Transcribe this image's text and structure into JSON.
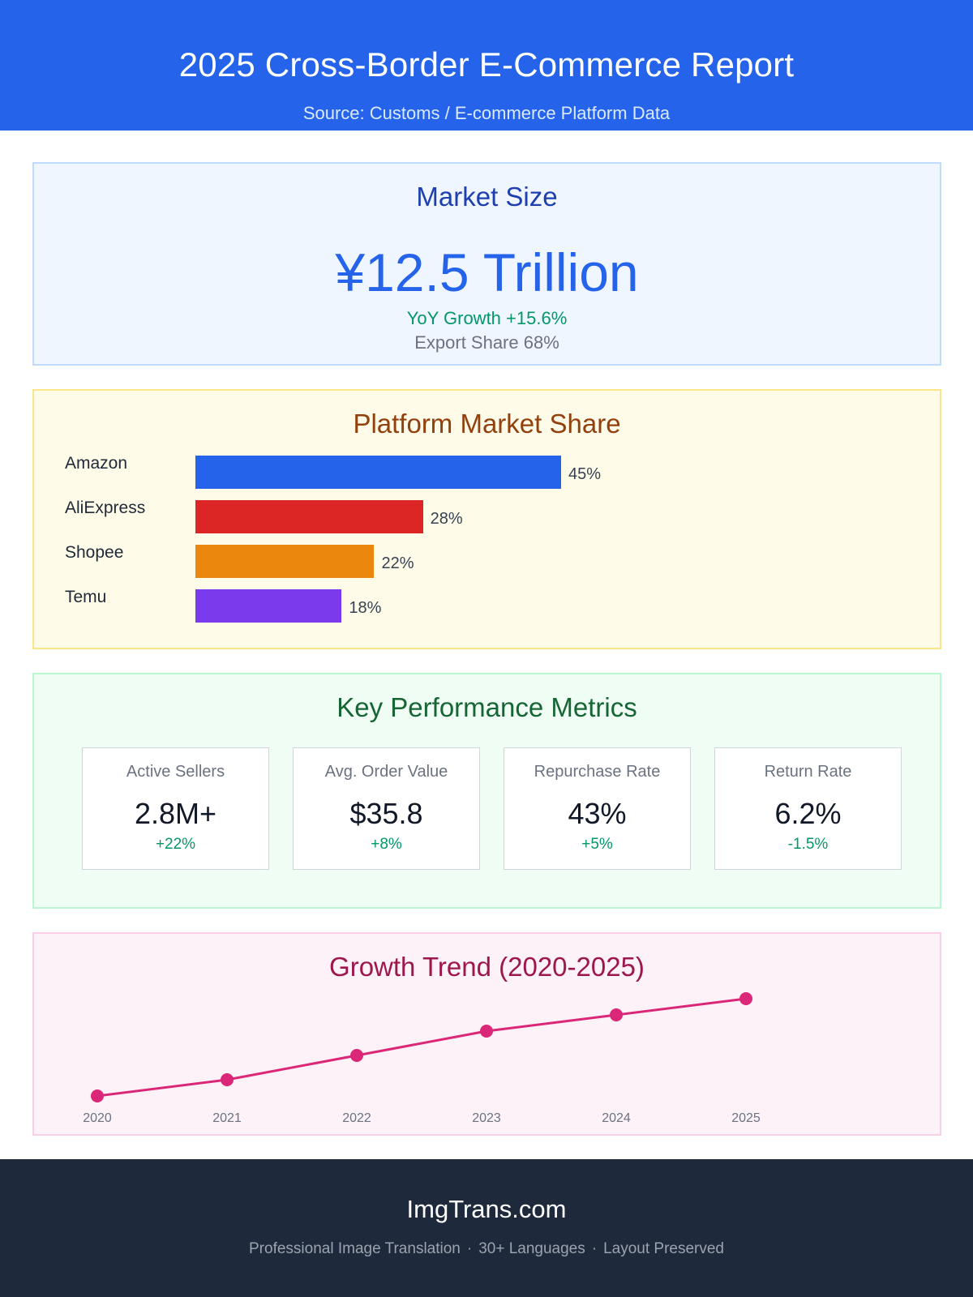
{
  "header": {
    "title": "2025 Cross-Border E-Commerce Report",
    "subtitle": "Source: Customs / E-commerce Platform Data"
  },
  "market_size": {
    "heading": "Market Size",
    "value": "¥12.5 Trillion",
    "yoy": "YoY Growth +15.6%",
    "export": "Export Share 68%"
  },
  "platform_share": {
    "heading": "Platform Market Share",
    "items": [
      {
        "name": "Amazon",
        "label": "45%",
        "color": "#2563eb"
      },
      {
        "name": "AliExpress",
        "label": "28%",
        "color": "#dc2626"
      },
      {
        "name": "Shopee",
        "label": "22%",
        "color": "#ea870c"
      },
      {
        "name": "Temu",
        "label": "18%",
        "color": "#7c3aed"
      }
    ]
  },
  "kpi": {
    "heading": "Key Performance Metrics",
    "cards": [
      {
        "label": "Active Sellers",
        "value": "2.8M+",
        "change": "+22%"
      },
      {
        "label": "Avg. Order Value",
        "value": "$35.8",
        "change": "+8%"
      },
      {
        "label": "Repurchase Rate",
        "value": "43%",
        "change": "+5%"
      },
      {
        "label": "Return Rate",
        "value": "6.2%",
        "change": "-1.5%"
      }
    ]
  },
  "trend": {
    "heading": "Growth Trend (2020-2025)",
    "color": "#db2777"
  },
  "chart_data": [
    {
      "type": "bar",
      "orientation": "horizontal",
      "title": "Platform Market Share",
      "categories": [
        "Amazon",
        "AliExpress",
        "Shopee",
        "Temu"
      ],
      "values": [
        45,
        28,
        22,
        18
      ],
      "unit": "%",
      "xlim": [
        0,
        100
      ],
      "grid": false,
      "legend": "none"
    },
    {
      "type": "line",
      "title": "Growth Trend (2020-2025)",
      "x": [
        "2020",
        "2021",
        "2022",
        "2023",
        "2024",
        "2025"
      ],
      "series": [
        {
          "values": [
            0,
            1,
            2.5,
            4,
            5,
            6
          ]
        }
      ],
      "y_axis_shown": false,
      "grid": false,
      "legend": "none"
    }
  ],
  "footer": {
    "brand": "ImgTrans.com",
    "tag_1": "Professional Image Translation",
    "tag_2": "30+ Languages",
    "tag_3": "Layout Preserved",
    "separator": "·"
  }
}
